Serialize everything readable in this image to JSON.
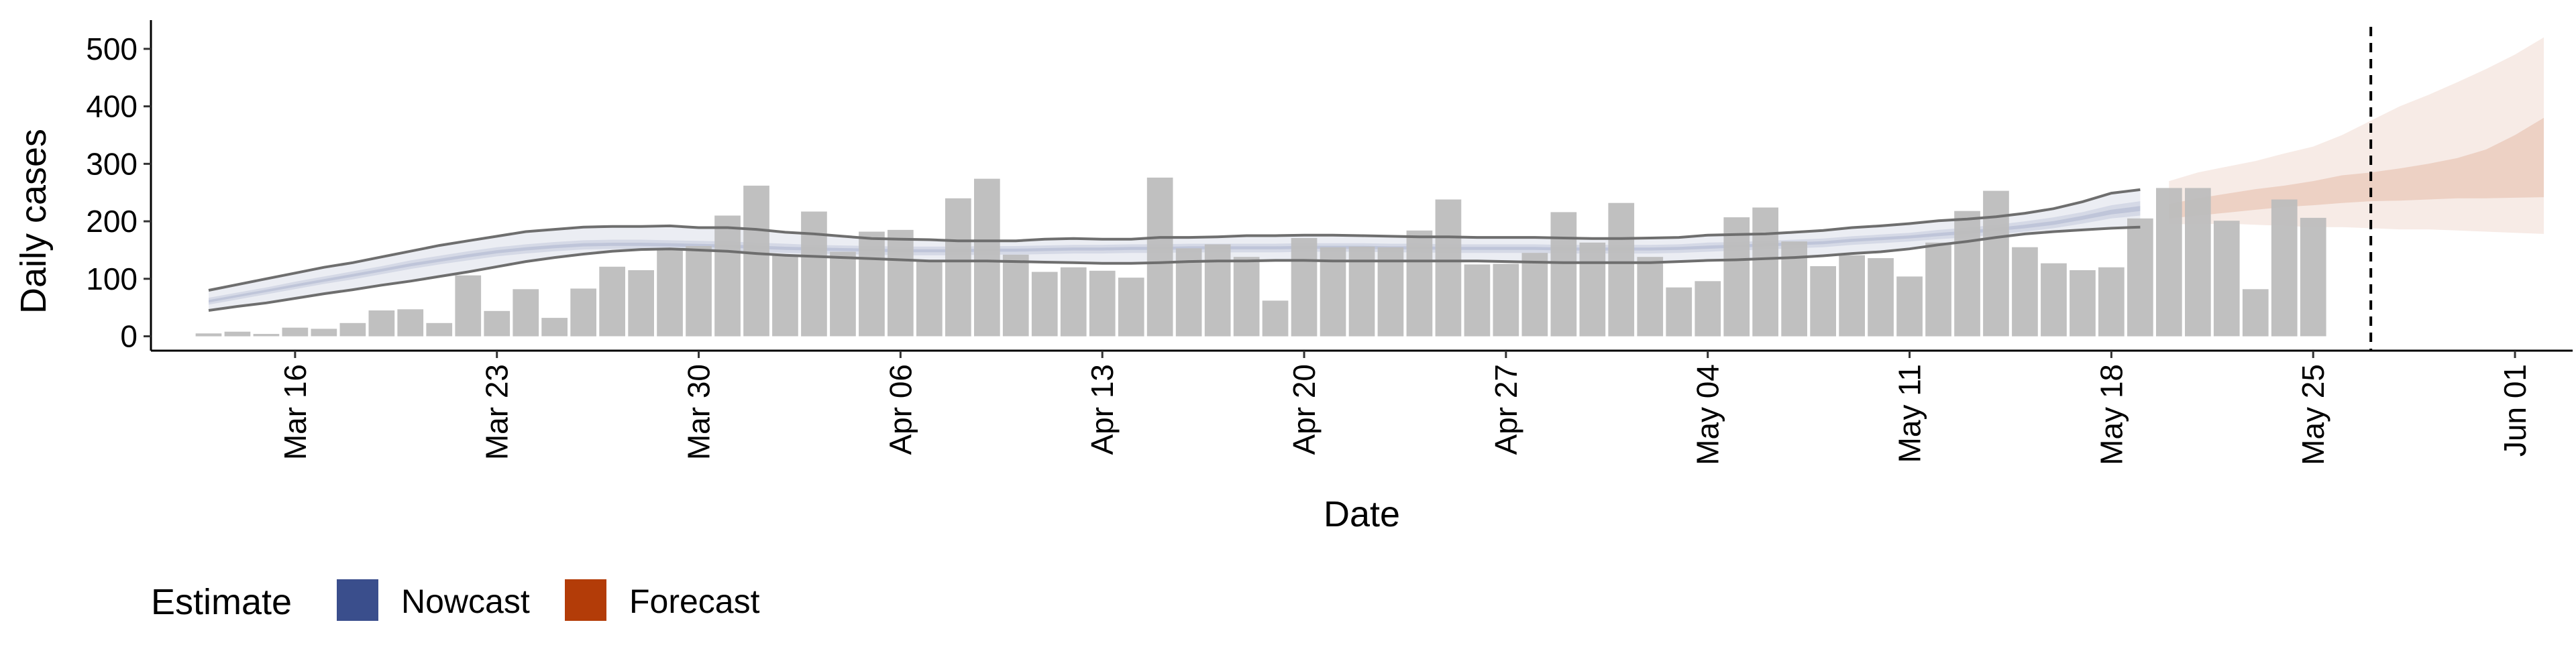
{
  "chart_data": {
    "type": "bar",
    "xlabel": "Date",
    "ylabel": "Daily cases",
    "ylim": [
      -25,
      550
    ],
    "yticks": [
      0,
      100,
      200,
      300,
      400,
      500
    ],
    "xlim": [
      "2020-03-11",
      "2020-06-03"
    ],
    "xticks": [
      {
        "date": "2020-03-16",
        "label": "Mar 16"
      },
      {
        "date": "2020-03-23",
        "label": "Mar 23"
      },
      {
        "date": "2020-03-30",
        "label": "Mar 30"
      },
      {
        "date": "2020-04-06",
        "label": "Apr 06"
      },
      {
        "date": "2020-04-13",
        "label": "Apr 13"
      },
      {
        "date": "2020-04-20",
        "label": "Apr 20"
      },
      {
        "date": "2020-04-27",
        "label": "Apr 27"
      },
      {
        "date": "2020-05-04",
        "label": "May 04"
      },
      {
        "date": "2020-05-11",
        "label": "May 11"
      },
      {
        "date": "2020-05-18",
        "label": "May 18"
      },
      {
        "date": "2020-05-25",
        "label": "May 25"
      },
      {
        "date": "2020-06-01",
        "label": "Jun 01"
      }
    ],
    "grid": false,
    "legend": {
      "title": "Estimate",
      "position": "bottom-left",
      "entries": [
        {
          "label": "Nowcast",
          "color": "#3a4e8c"
        },
        {
          "label": "Forecast",
          "color": "#b33c08"
        }
      ]
    },
    "bar_color": "#bdbdbd",
    "reported_cases": {
      "start_date": "2020-03-13",
      "values": [
        5,
        8,
        4,
        15,
        13,
        23,
        45,
        47,
        23,
        106,
        44,
        82,
        32,
        83,
        121,
        115,
        151,
        157,
        210,
        262,
        142,
        217,
        147,
        182,
        185,
        133,
        240,
        274,
        142,
        112,
        120,
        114,
        102,
        276,
        153,
        160,
        138,
        62,
        171,
        155,
        156,
        155,
        184,
        238,
        125,
        126,
        145,
        216,
        163,
        232,
        138,
        85,
        96,
        207,
        224,
        165,
        122,
        141,
        136,
        104,
        163,
        218,
        253,
        155,
        127,
        115,
        120,
        205,
        258,
        258,
        201,
        82,
        238,
        206
      ]
    },
    "nowcast": {
      "start_date": "2020-03-13",
      "color": "#3a4e8c",
      "upper": [
        80,
        90,
        100,
        110,
        120,
        128,
        138,
        148,
        158,
        166,
        174,
        182,
        186,
        190,
        191,
        191,
        192,
        189,
        189,
        186,
        181,
        178,
        174,
        170,
        169,
        168,
        166,
        166,
        166,
        169,
        170,
        169,
        169,
        172,
        172,
        173,
        175,
        175,
        176,
        176,
        175,
        174,
        173,
        173,
        172,
        172,
        172,
        171,
        170,
        170,
        171,
        172,
        176,
        177,
        178,
        181,
        184,
        189,
        192,
        196,
        201,
        204,
        208,
        214,
        222,
        234,
        249,
        255
      ],
      "upper_inner": [
        67,
        76,
        85,
        95,
        104,
        113,
        122,
        132,
        140,
        148,
        155,
        160,
        164,
        167,
        168,
        168,
        167,
        166,
        165,
        163,
        161,
        159,
        158,
        157,
        156,
        156,
        156,
        157,
        157,
        158,
        159,
        159,
        160,
        160,
        161,
        161,
        161,
        161,
        162,
        162,
        162,
        161,
        161,
        160,
        160,
        160,
        160,
        159,
        159,
        159,
        159,
        160,
        163,
        164,
        166,
        168,
        170,
        174,
        177,
        180,
        185,
        189,
        194,
        200,
        207,
        216,
        228,
        235
      ],
      "median": [
        61,
        70,
        79,
        88,
        97,
        106,
        115,
        124,
        132,
        140,
        147,
        152,
        156,
        159,
        160,
        160,
        159,
        158,
        157,
        155,
        153,
        152,
        151,
        150,
        149,
        149,
        149,
        150,
        150,
        151,
        152,
        152,
        153,
        153,
        154,
        154,
        154,
        154,
        155,
        155,
        155,
        154,
        154,
        153,
        153,
        153,
        153,
        152,
        152,
        152,
        152,
        153,
        155,
        157,
        159,
        161,
        163,
        167,
        170,
        173,
        177,
        181,
        186,
        191,
        197,
        206,
        216,
        222
      ],
      "lower_inner": [
        55,
        64,
        73,
        82,
        91,
        99,
        108,
        117,
        125,
        132,
        139,
        144,
        148,
        151,
        152,
        152,
        151,
        150,
        149,
        147,
        145,
        144,
        143,
        142,
        141,
        141,
        141,
        142,
        142,
        143,
        144,
        144,
        145,
        145,
        146,
        146,
        146,
        146,
        147,
        147,
        147,
        146,
        146,
        145,
        145,
        145,
        145,
        144,
        144,
        144,
        144,
        145,
        147,
        149,
        151,
        153,
        155,
        159,
        162,
        165,
        169,
        172,
        177,
        182,
        188,
        196,
        205,
        210
      ],
      "lower": [
        45,
        52,
        58,
        66,
        74,
        81,
        89,
        96,
        104,
        112,
        121,
        130,
        137,
        143,
        148,
        151,
        152,
        150,
        148,
        144,
        141,
        139,
        137,
        135,
        133,
        131,
        131,
        131,
        130,
        129,
        128,
        127,
        127,
        128,
        130,
        131,
        131,
        132,
        132,
        131,
        131,
        131,
        131,
        131,
        131,
        130,
        129,
        128,
        128,
        128,
        128,
        130,
        132,
        133,
        135,
        137,
        140,
        144,
        147,
        152,
        159,
        165,
        172,
        178,
        182,
        185,
        188,
        190
      ]
    },
    "forecast": {
      "start_date": "2020-05-20",
      "color": "#b33c08",
      "outer_upper": [
        270,
        285,
        295,
        305,
        318,
        330,
        350,
        375,
        400,
        420,
        442,
        465,
        490,
        520
      ],
      "inner_upper": [
        230,
        240,
        248,
        256,
        262,
        270,
        280,
        285,
        292,
        300,
        310,
        325,
        350,
        380
      ],
      "inner_lower": [
        205,
        210,
        215,
        220,
        225,
        228,
        232,
        235,
        236,
        238,
        240,
        240,
        241,
        242
      ],
      "outer_lower": [
        195,
        195,
        196,
        194,
        192,
        190,
        190,
        188,
        186,
        186,
        184,
        182,
        180,
        178
      ]
    },
    "vline": {
      "date": "2020-05-27",
      "style": "dashed"
    }
  }
}
